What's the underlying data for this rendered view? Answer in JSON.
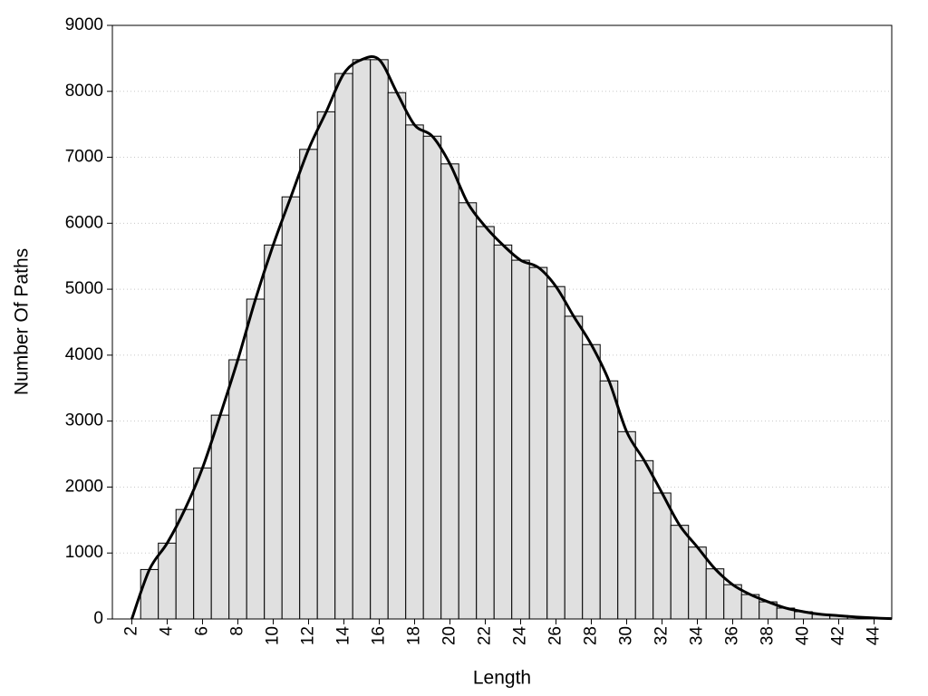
{
  "chart_data": {
    "type": "histogram",
    "x_label": "Length",
    "y_label": "Number Of Paths",
    "bins": [
      2.5,
      3.5,
      4.5,
      5.5,
      6.5,
      7.5,
      8.5,
      9.5,
      10.5,
      11.5,
      12.5,
      13.5,
      14.5,
      15.5,
      16.5,
      17.5,
      18.5,
      19.5,
      20.5,
      21.5,
      22.5,
      23.5,
      24.5,
      25.5,
      26.5,
      27.5,
      28.5,
      29.5,
      30.5,
      31.5,
      32.5,
      33.5,
      34.5,
      35.5,
      36.5,
      37.5,
      38.5,
      39.5,
      40.5,
      41.5,
      42.5,
      43.5,
      44.5
    ],
    "values": [
      750,
      1150,
      1660,
      2290,
      3090,
      3930,
      4850,
      5670,
      6400,
      7120,
      7690,
      8270,
      8480,
      8480,
      7980,
      7490,
      7320,
      6900,
      6310,
      5950,
      5670,
      5440,
      5330,
      5040,
      4590,
      4160,
      3610,
      2840,
      2400,
      1910,
      1420,
      1090,
      760,
      520,
      370,
      260,
      165,
      110,
      70,
      50,
      30,
      15
    ],
    "color": "#e0e0e0",
    "line": {
      "color": "#000000",
      "x": [
        2,
        3,
        4,
        5,
        6,
        7,
        8,
        9,
        10,
        11,
        12,
        13,
        14,
        15,
        16,
        17,
        18,
        19,
        20,
        21,
        22,
        23,
        24,
        25,
        26,
        27,
        28,
        29,
        30,
        31,
        32,
        33,
        34,
        35,
        36,
        37,
        38,
        39,
        40,
        41,
        42,
        43,
        44,
        45
      ],
      "values": [
        0,
        750,
        1150,
        1660,
        2290,
        3090,
        3930,
        4850,
        5670,
        6400,
        7120,
        7690,
        8270,
        8480,
        8480,
        7980,
        7490,
        7320,
        6900,
        6310,
        5950,
        5670,
        5440,
        5330,
        5040,
        4590,
        4160,
        3610,
        2840,
        2400,
        1910,
        1420,
        1090,
        760,
        520,
        370,
        260,
        165,
        110,
        70,
        50,
        30,
        15,
        5
      ]
    },
    "xlim": [
      0.9,
      45
    ],
    "ylim": [
      0,
      9000
    ],
    "xticks": [
      2,
      4,
      6,
      8,
      10,
      12,
      14,
      16,
      18,
      20,
      22,
      24,
      26,
      28,
      30,
      32,
      34,
      36,
      38,
      40,
      42,
      44
    ],
    "yticks": [
      0,
      1000,
      2000,
      3000,
      4000,
      5000,
      6000,
      7000,
      8000,
      9000
    ],
    "grid": true
  }
}
